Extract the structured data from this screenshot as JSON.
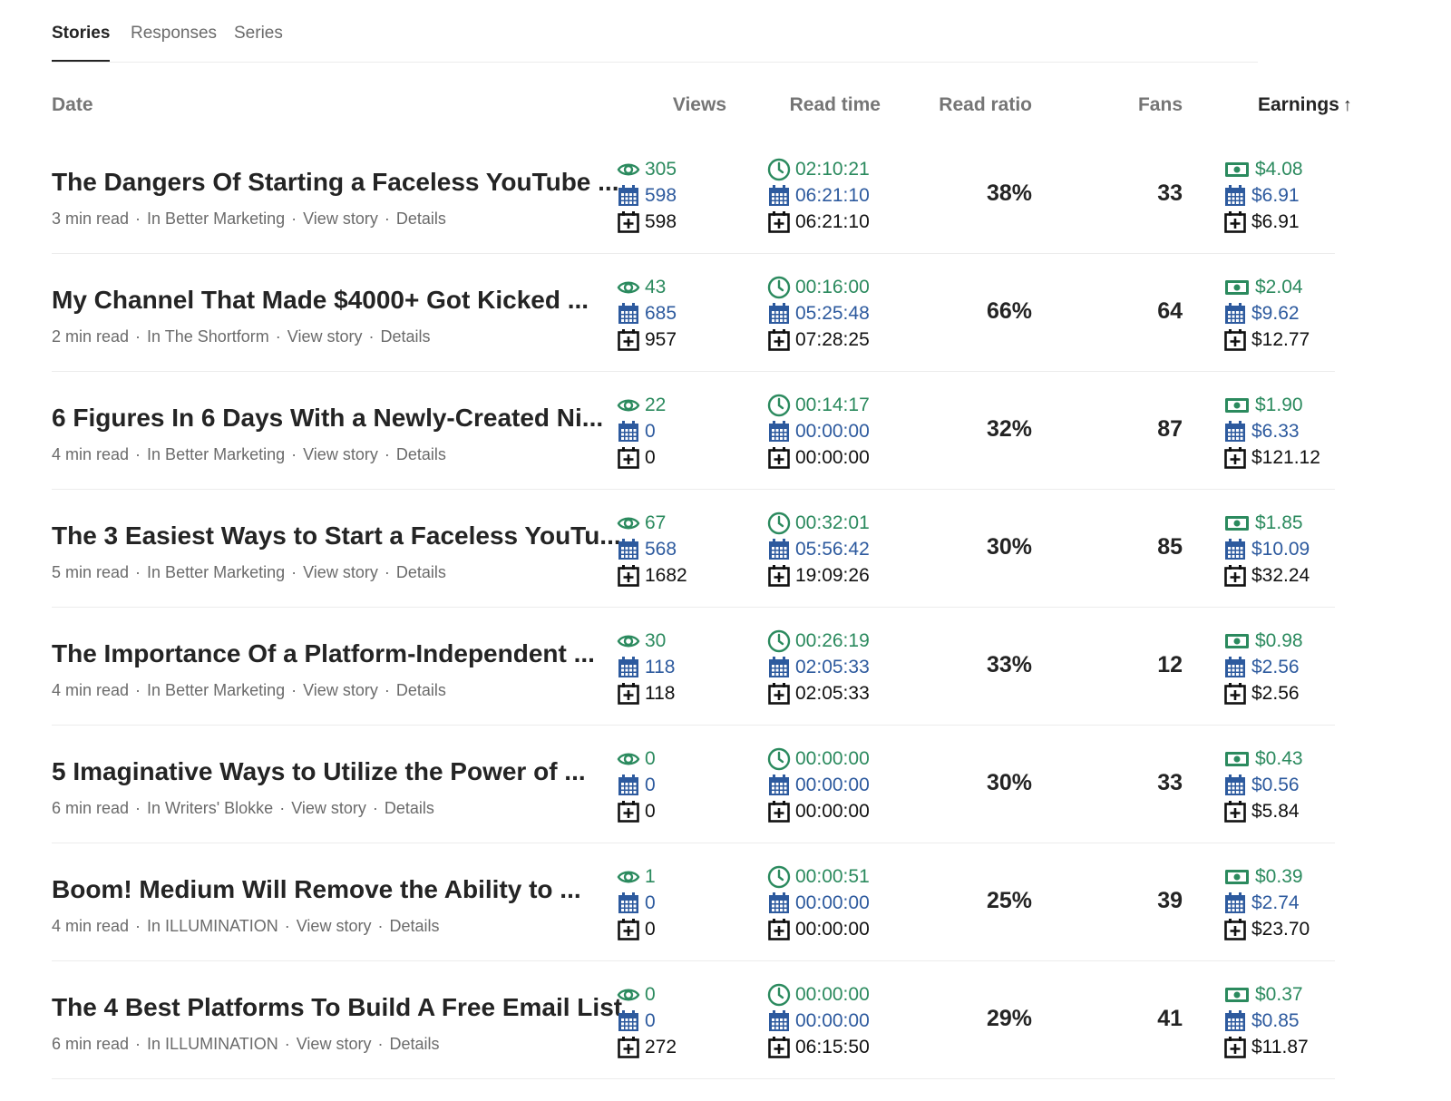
{
  "tabs": [
    "Stories",
    "Responses",
    "Series"
  ],
  "headers": {
    "date": "Date",
    "views": "Views",
    "read_time": "Read time",
    "read_ratio": "Read ratio",
    "fans": "Fans",
    "earnings": "Earnings",
    "sort_icon": "arrow-up-icon"
  },
  "colors": {
    "green": "#2b8a5e",
    "blue": "#2d5a9e",
    "black": "#111111"
  },
  "meta_links": {
    "view_story": "View story",
    "details": "Details"
  },
  "stories": [
    {
      "title": "The Dangers Of Starting a Faceless YouTube ...",
      "read": "3 min read",
      "pub": "In Better Marketing",
      "views": [
        "305",
        "598",
        "598"
      ],
      "read_time": [
        "02:10:21",
        "06:21:10",
        "06:21:10"
      ],
      "ratio": "38%",
      "fans": "33",
      "earnings": [
        "$4.08",
        "$6.91",
        "$6.91"
      ]
    },
    {
      "title": "My Channel That Made $4000+ Got Kicked ...",
      "read": "2 min read",
      "pub": "In The Shortform",
      "views": [
        "43",
        "685",
        "957"
      ],
      "read_time": [
        "00:16:00",
        "05:25:48",
        "07:28:25"
      ],
      "ratio": "66%",
      "fans": "64",
      "earnings": [
        "$2.04",
        "$9.62",
        "$12.77"
      ]
    },
    {
      "title": "6 Figures In 6 Days With a Newly-Created Ni...",
      "read": "4 min read",
      "pub": "In Better Marketing",
      "views": [
        "22",
        "0",
        "0"
      ],
      "read_time": [
        "00:14:17",
        "00:00:00",
        "00:00:00"
      ],
      "ratio": "32%",
      "fans": "87",
      "earnings": [
        "$1.90",
        "$6.33",
        "$121.12"
      ]
    },
    {
      "title": "The 3 Easiest Ways to Start a Faceless YouTu...",
      "read": "5 min read",
      "pub": "In Better Marketing",
      "views": [
        "67",
        "568",
        "1682"
      ],
      "read_time": [
        "00:32:01",
        "05:56:42",
        "19:09:26"
      ],
      "ratio": "30%",
      "fans": "85",
      "earnings": [
        "$1.85",
        "$10.09",
        "$32.24"
      ]
    },
    {
      "title": "The Importance Of a Platform-Independent ...",
      "read": "4 min read",
      "pub": "In Better Marketing",
      "views": [
        "30",
        "118",
        "118"
      ],
      "read_time": [
        "00:26:19",
        "02:05:33",
        "02:05:33"
      ],
      "ratio": "33%",
      "fans": "12",
      "earnings": [
        "$0.98",
        "$2.56",
        "$2.56"
      ]
    },
    {
      "title": "5 Imaginative Ways to Utilize the Power of ...",
      "read": "6 min read",
      "pub": "In Writers' Blokke",
      "views": [
        "0",
        "0",
        "0"
      ],
      "read_time": [
        "00:00:00",
        "00:00:00",
        "00:00:00"
      ],
      "ratio": "30%",
      "fans": "33",
      "earnings": [
        "$0.43",
        "$0.56",
        "$5.84"
      ]
    },
    {
      "title": "Boom! Medium Will Remove the Ability to ...",
      "read": "4 min read",
      "pub": "In ILLUMINATION",
      "views": [
        "1",
        "0",
        "0"
      ],
      "read_time": [
        "00:00:51",
        "00:00:00",
        "00:00:00"
      ],
      "ratio": "25%",
      "fans": "39",
      "earnings": [
        "$0.39",
        "$2.74",
        "$23.70"
      ]
    },
    {
      "title": "The 4 Best Platforms To Build A Free Email List",
      "read": "6 min read",
      "pub": "In ILLUMINATION",
      "views": [
        "0",
        "0",
        "272"
      ],
      "read_time": [
        "00:00:00",
        "00:00:00",
        "06:15:50"
      ],
      "ratio": "29%",
      "fans": "41",
      "earnings": [
        "$0.37",
        "$0.85",
        "$11.87"
      ]
    }
  ]
}
